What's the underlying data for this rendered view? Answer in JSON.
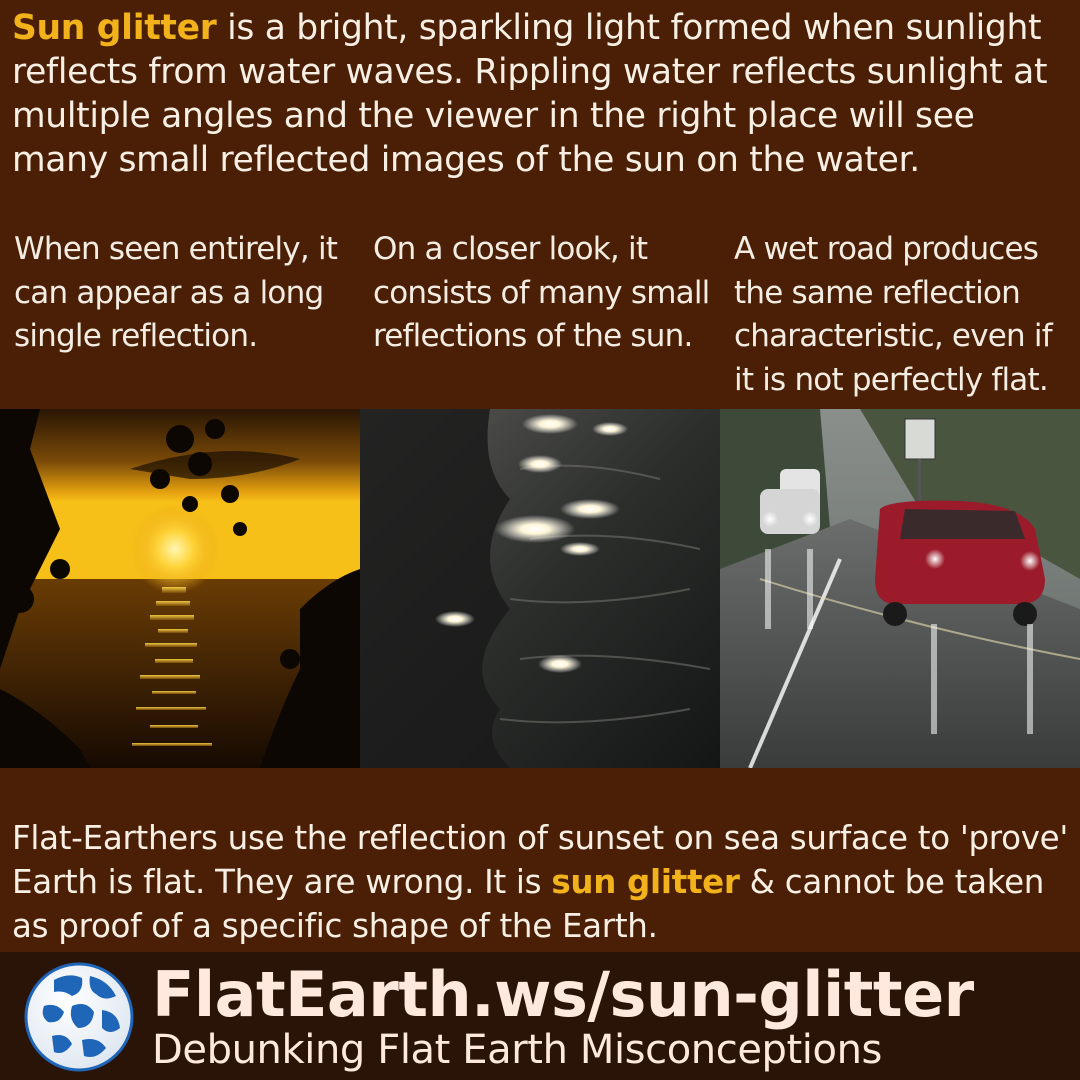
{
  "intro": {
    "highlight": "Sun glitter",
    "text": " is a bright, sparkling light formed when sunlight reflects from water waves. Rippling water reflects sunlight at multiple angles and the viewer in the right place will see many small reflected images of the sun on the water."
  },
  "captions": [
    "When seen entirely, it can appear as a long single reflection.",
    "On a closer look, it consists of many small reflections of the sun.",
    "A wet road produces the same reflection characteristic, even if it is not perfectly flat."
  ],
  "photos": [
    {
      "icon": "sunset-sea-photo"
    },
    {
      "icon": "water-ripples-photo"
    },
    {
      "icon": "wet-road-cars-photo"
    }
  ],
  "outro": {
    "before": "Flat-Earthers use the reflection of sunset on sea surface to 'prove' Earth is flat. They are wrong.  It is ",
    "highlight": "sun glitter",
    "after": " & cannot be taken as proof of a specific shape of the Earth."
  },
  "footer": {
    "site": "FlatEarth.ws/sun-glitter",
    "tagline": "Debunking Flat Earth Misconceptions",
    "logo_icon": "globe-icon"
  },
  "colors": {
    "background": "#4a1f05",
    "footer_background": "#2a1408",
    "highlight": "#f2b21c",
    "text": "#f7efe4"
  }
}
